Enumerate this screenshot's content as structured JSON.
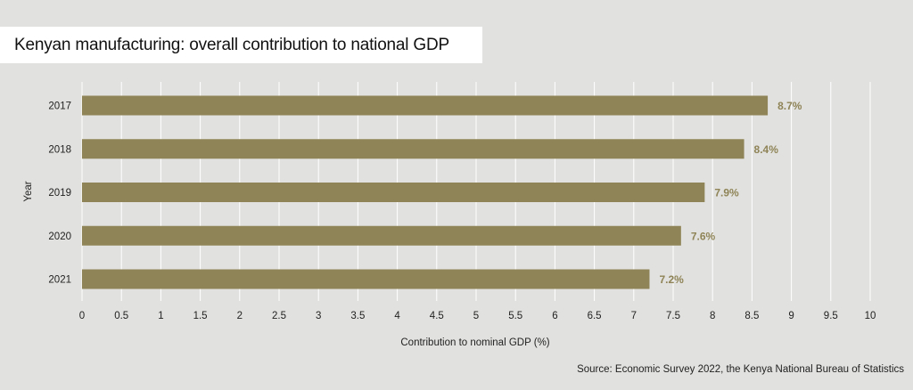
{
  "title": "Kenyan manufacturing: overall contribution to national GDP",
  "source": "Source: Economic Survey 2022, the Kenya National Bureau of Statistics",
  "colors": {
    "background": "#e1e1df",
    "bar": "#8f8457",
    "value_label": "#8f8457",
    "grid": "#ffffff",
    "text": "#222222"
  },
  "chart_data": {
    "type": "bar",
    "orientation": "horizontal",
    "categories": [
      "2017",
      "2018",
      "2019",
      "2020",
      "2021"
    ],
    "values": [
      8.7,
      8.4,
      7.9,
      7.6,
      7.2
    ],
    "value_labels": [
      "8.7%",
      "8.4%",
      "7.9%",
      "7.6%",
      "7.2%"
    ],
    "xlabel": "Contribution to nominal GDP (%)",
    "ylabel": "Year",
    "xlim": [
      0,
      10
    ],
    "xticks": [
      "0",
      "0.5",
      "1",
      "1.5",
      "2",
      "2.5",
      "3",
      "3.5",
      "4",
      "4.5",
      "5",
      "5.5",
      "6",
      "6.5",
      "7",
      "7.5",
      "8",
      "8.5",
      "9",
      "9.5",
      "10"
    ],
    "grid": true,
    "legend": false
  }
}
